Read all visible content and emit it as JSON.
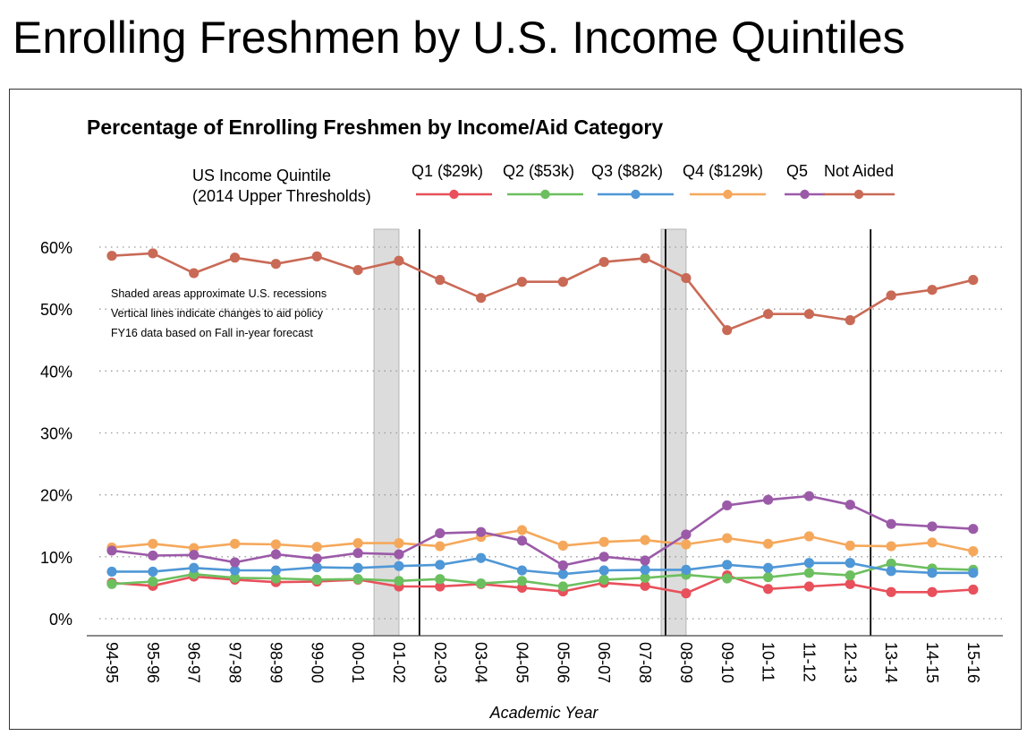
{
  "slide_title": "Enrolling Freshmen by U.S. Income Quintiles",
  "chart_data": {
    "type": "line",
    "title": "Percentage of Enrolling Freshmen by Income/Aid Category",
    "xlabel": "Academic Year",
    "ylabel": "",
    "ylim": [
      0,
      60
    ],
    "yticks": [
      0,
      10,
      20,
      30,
      40,
      50,
      60
    ],
    "ytick_labels": [
      "0%",
      "10%",
      "20%",
      "30%",
      "40%",
      "50%",
      "60%"
    ],
    "grid": "horizontal dotted",
    "legend_title_lines": [
      "US Income Quintile",
      "(2014 Upper Thresholds)"
    ],
    "legend_position": "top",
    "categories": [
      "94-95",
      "95-96",
      "96-97",
      "97-98",
      "98-99",
      "99-00",
      "00-01",
      "01-02",
      "02-03",
      "03-04",
      "04-05",
      "05-06",
      "06-07",
      "07-08",
      "08-09",
      "09-10",
      "10-11",
      "11-12",
      "12-13",
      "13-14",
      "14-15",
      "15-16"
    ],
    "series": [
      {
        "name": "Q1 ($29k)",
        "color": "#e8505b",
        "values": [
          5.8,
          5.3,
          6.8,
          6.3,
          5.9,
          6.0,
          6.3,
          5.2,
          5.2,
          5.6,
          5.0,
          4.4,
          5.8,
          5.3,
          4.1,
          7.0,
          4.8,
          5.2,
          5.6,
          4.3,
          4.3,
          4.7
        ]
      },
      {
        "name": "Q2 ($53k)",
        "color": "#6cbf5f",
        "values": [
          5.6,
          6.0,
          7.2,
          6.6,
          6.5,
          6.3,
          6.4,
          6.1,
          6.4,
          5.7,
          6.1,
          5.2,
          6.3,
          6.6,
          7.1,
          6.5,
          6.7,
          7.4,
          7.0,
          8.9,
          8.1,
          7.9
        ]
      },
      {
        "name": "Q3 ($82k)",
        "color": "#4f97d6",
        "values": [
          7.6,
          7.6,
          8.2,
          7.8,
          7.8,
          8.3,
          8.2,
          8.5,
          8.7,
          9.8,
          7.8,
          7.2,
          7.8,
          7.9,
          7.9,
          8.7,
          8.2,
          9.0,
          9.0,
          7.7,
          7.4,
          7.4
        ]
      },
      {
        "name": "Q4 ($129k)",
        "color": "#f5a85b",
        "values": [
          11.5,
          12.1,
          11.4,
          12.1,
          12.0,
          11.6,
          12.2,
          12.2,
          11.7,
          13.2,
          14.3,
          11.8,
          12.4,
          12.7,
          12.0,
          13.0,
          12.1,
          13.3,
          11.8,
          11.7,
          12.3,
          10.9
        ]
      },
      {
        "name": "Q5",
        "color": "#9b5aa8",
        "values": [
          11.0,
          10.2,
          10.3,
          9.1,
          10.4,
          9.7,
          10.6,
          10.4,
          13.8,
          14.0,
          12.6,
          8.6,
          10.0,
          9.4,
          13.6,
          18.3,
          19.2,
          19.8,
          18.4,
          15.3,
          14.9,
          14.5
        ]
      },
      {
        "name": "Not Aided",
        "color": "#c96a56",
        "values": [
          58.6,
          59.0,
          55.8,
          58.3,
          57.3,
          58.5,
          56.3,
          57.8,
          54.7,
          51.8,
          54.4,
          54.4,
          57.6,
          58.2,
          55.0,
          46.6,
          49.2,
          49.2,
          48.2,
          52.2,
          53.1,
          54.7
        ]
      }
    ],
    "recession_shading": [
      [
        "00-01",
        "01-02"
      ],
      [
        "07-08",
        "08-09"
      ]
    ],
    "policy_change_lines": [
      "01-02",
      "07-08",
      "12-13"
    ],
    "annotations": [
      "Shaded areas approximate U.S. recessions",
      "Vertical lines indicate changes to aid policy",
      "FY16 data based on Fall in-year forecast"
    ]
  }
}
